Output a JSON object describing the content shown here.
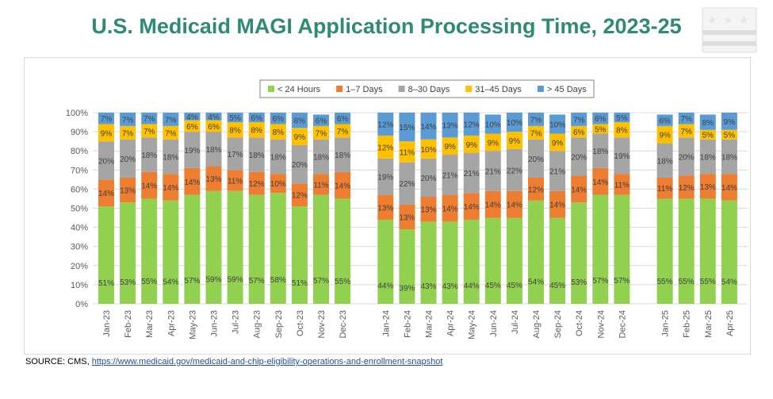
{
  "title": "U.S. Medicaid MAGI Application Processing Time, 2023-25",
  "source": {
    "label": "SOURCE: CMS, ",
    "link": "https://www.medicaid.gov/medicaid-and-chip-eligibility-operations-and-enrollment-snapshot"
  },
  "chart_data": {
    "type": "bar",
    "stacked": true,
    "title": "U.S. Medicaid MAGI Application Processing Time, 2023-25",
    "ylim": [
      0,
      100
    ],
    "yticks": [
      "0%",
      "10%",
      "20%",
      "30%",
      "40%",
      "50%",
      "60%",
      "70%",
      "80%",
      "90%",
      "100%"
    ],
    "grid": true,
    "legend_position": "top",
    "groups": [
      [
        "Jan-23",
        "Feb-23",
        "Mar-23",
        "Apr-23",
        "May-23",
        "Jun-23",
        "Jul-23",
        "Aug-23",
        "Sep-23",
        "Oct-23",
        "Nov-23",
        "Dec-23"
      ],
      [
        "Jan-24",
        "Feb-24",
        "Mar-24",
        "Apr-24",
        "May-24",
        "Jun-24",
        "Jul-24",
        "Aug-24",
        "Sep-24",
        "Oct-24",
        "Nov-24",
        "Dec-24"
      ],
      [
        "Jan-25",
        "Feb-25",
        "Mar-25",
        "Apr-25"
      ]
    ],
    "series": [
      {
        "name": "< 24 Hours",
        "color": "#92d050",
        "values": [
          51,
          53,
          55,
          54,
          57,
          59,
          59,
          57,
          58,
          51,
          57,
          55,
          44,
          39,
          43,
          43,
          44,
          45,
          45,
          54,
          45,
          53,
          57,
          57,
          55,
          55,
          55,
          54
        ]
      },
      {
        "name": "1–7 Days",
        "color": "#ed7d31",
        "values": [
          14,
          13,
          14,
          14,
          14,
          13,
          11,
          12,
          10,
          12,
          11,
          14,
          13,
          13,
          13,
          14,
          14,
          14,
          14,
          12,
          14,
          14,
          14,
          11,
          11,
          12,
          13,
          14
        ]
      },
      {
        "name": "8–30 Days",
        "color": "#a5a5a5",
        "values": [
          20,
          20,
          18,
          18,
          19,
          18,
          17,
          18,
          18,
          20,
          18,
          18,
          19,
          22,
          20,
          21,
          21,
          21,
          22,
          20,
          21,
          20,
          18,
          19,
          18,
          20,
          18,
          18
        ]
      },
      {
        "name": "31–45 Days",
        "color": "#ffc000",
        "values": [
          9,
          7,
          7,
          7,
          6,
          6,
          8,
          8,
          8,
          9,
          7,
          7,
          12,
          11,
          10,
          9,
          9,
          9,
          9,
          7,
          9,
          6,
          5,
          8,
          9,
          7,
          5,
          5
        ]
      },
      {
        "name": "> 45 Days",
        "color": "#5b9bd5",
        "values": [
          7,
          7,
          7,
          7,
          4,
          4,
          5,
          6,
          6,
          8,
          6,
          6,
          12,
          15,
          14,
          13,
          12,
          10,
          10,
          7,
          10,
          7,
          6,
          5,
          6,
          7,
          8,
          9
        ]
      }
    ]
  }
}
